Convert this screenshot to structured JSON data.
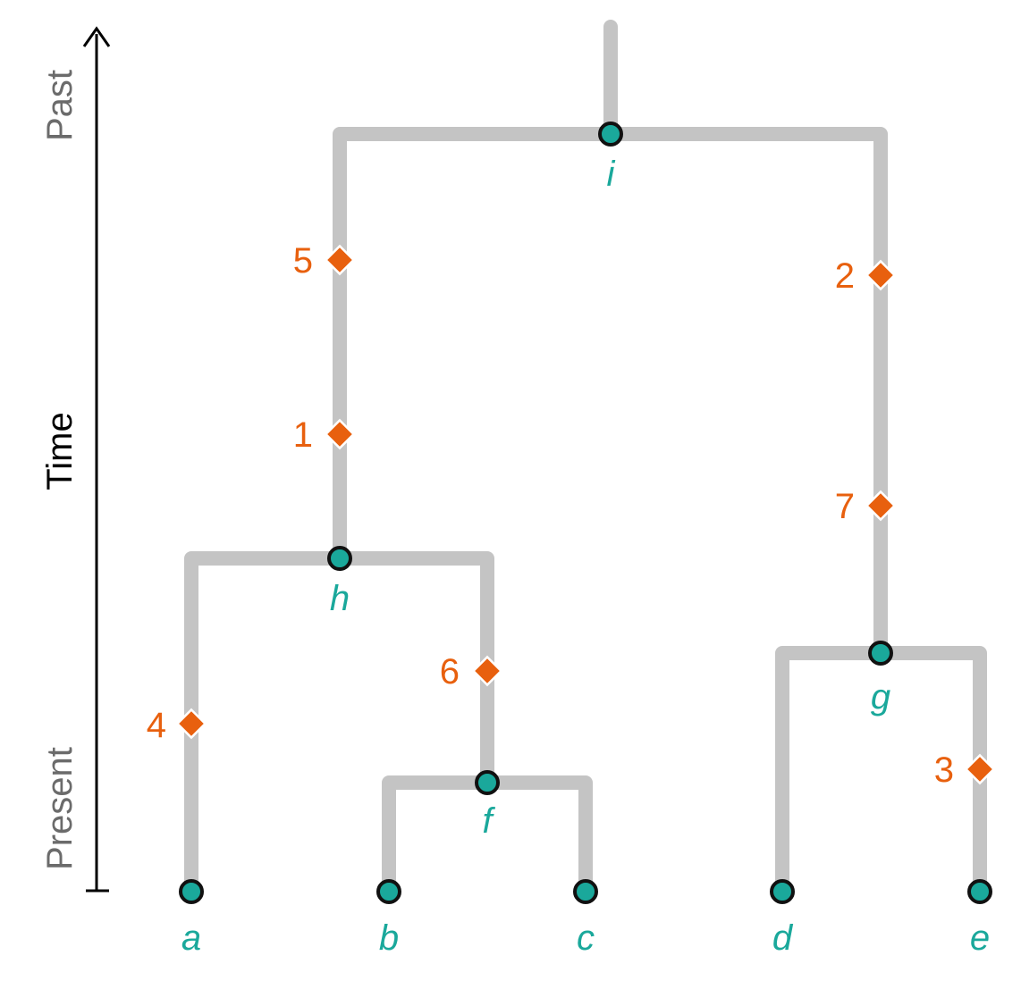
{
  "axis": {
    "label": "Time",
    "top_label": "Past",
    "bottom_label": "Present",
    "text_color": "#000000",
    "end_label_color": "#6b6b6b"
  },
  "colors": {
    "branch": "#c4c4c4",
    "node_fill": "#1aa89b",
    "node_stroke": "#111111",
    "mutation": "#e8600e",
    "label": "#1aa89b"
  },
  "nodes": {
    "a": "a",
    "b": "b",
    "c": "c",
    "d": "d",
    "e": "e",
    "f": "f",
    "g": "g",
    "h": "h",
    "i": "i"
  },
  "mutations": {
    "m1": "1",
    "m2": "2",
    "m3": "3",
    "m4": "4",
    "m5": "5",
    "m6": "6",
    "m7": "7"
  }
}
